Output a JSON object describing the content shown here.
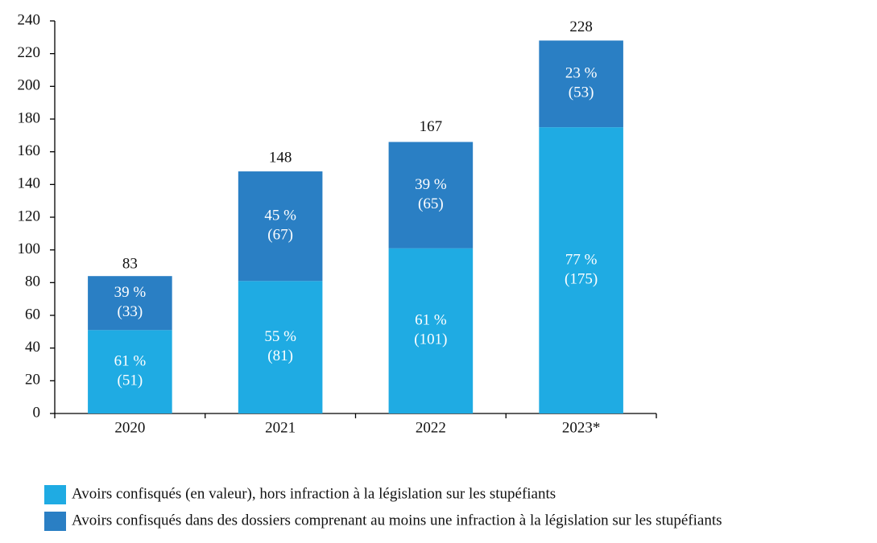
{
  "chart_data": {
    "type": "stacked_bar",
    "categories": [
      "2020",
      "2021",
      "2022",
      "2023*"
    ],
    "series": [
      {
        "name": "Avoirs confisqués (en valeur), hors infraction à la législation sur les stupéfiants",
        "color": "#1fabe3",
        "values": [
          51,
          81,
          101,
          175
        ],
        "value_labels": [
          "(51)",
          "(81)",
          "(101)",
          "(175)"
        ],
        "share_labels": [
          "61 %",
          "55 %",
          "61 %",
          "77 %"
        ]
      },
      {
        "name": "Avoirs confisqués dans des dossiers comprenant au moins une infraction à la législation sur les stupéfiants",
        "color": "#2a7fc4",
        "values": [
          33,
          67,
          65,
          53
        ],
        "value_labels": [
          "(33)",
          "(67)",
          "(65)",
          "(53)"
        ],
        "share_labels": [
          "39 %",
          "45 %",
          "39 %",
          "23 %"
        ]
      }
    ],
    "totals": [
      83,
      148,
      167,
      228
    ],
    "ylim": [
      0,
      240
    ],
    "yticks": [
      0,
      20,
      40,
      60,
      80,
      100,
      120,
      140,
      160,
      180,
      200,
      220,
      240
    ]
  }
}
